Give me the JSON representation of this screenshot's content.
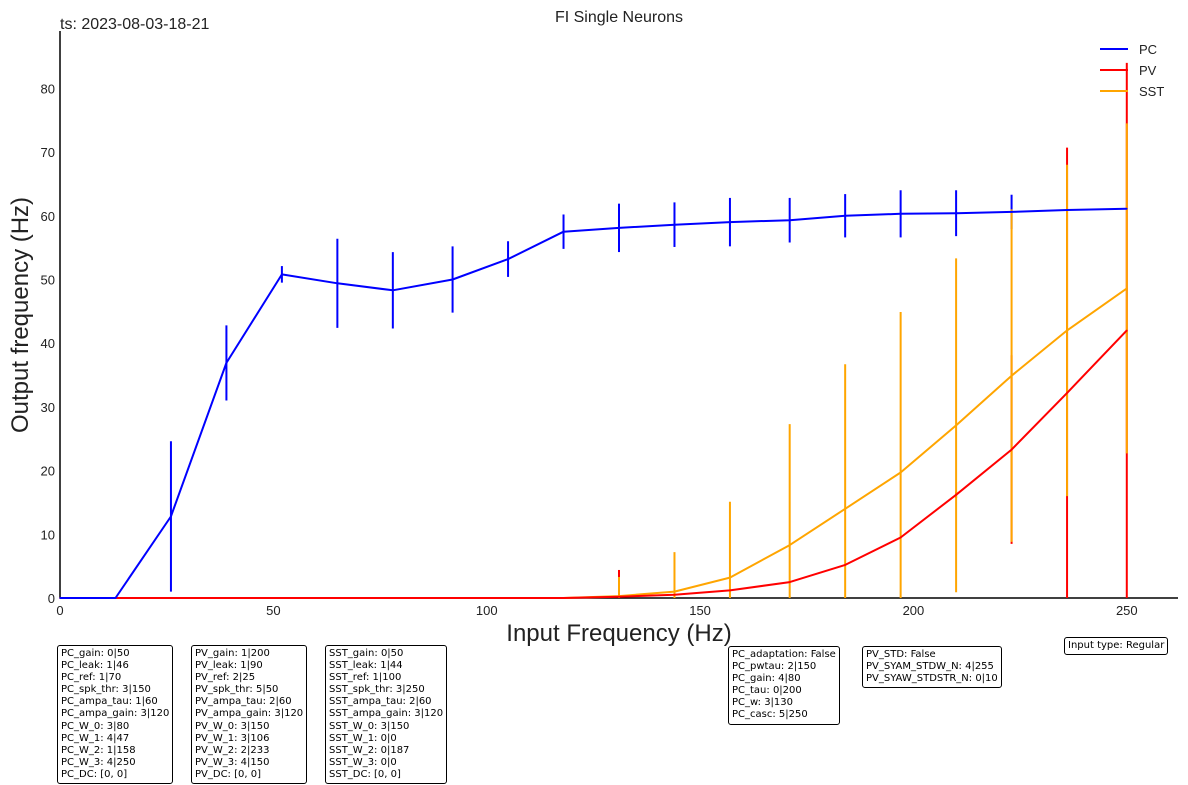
{
  "chart_data": {
    "type": "line",
    "title": "FI Single Neurons",
    "timestamp": "ts: 2023-08-03-18-21",
    "xlabel": "Input Frequency (Hz)",
    "ylabel": "Output frequency (Hz)",
    "xlim": [
      0,
      262
    ],
    "ylim": [
      0,
      89
    ],
    "xticks": [
      0,
      50,
      100,
      150,
      200,
      250
    ],
    "yticks": [
      0,
      10,
      20,
      30,
      40,
      50,
      60,
      70,
      80
    ],
    "legend_position": "top-right",
    "x": [
      0,
      13,
      26,
      39,
      52,
      65,
      78,
      92,
      105,
      118,
      131,
      144,
      157,
      171,
      184,
      197,
      210,
      223,
      236,
      250
    ],
    "series": [
      {
        "name": "PC",
        "color": "#0000ff",
        "values": [
          0,
          0,
          12.8,
          36.9,
          50.8,
          49.4,
          48.3,
          50.0,
          53.2,
          57.5,
          58.1,
          58.6,
          59.0,
          59.3,
          60.0,
          60.3,
          60.4,
          60.6,
          60.9,
          61.1
        ],
        "errors": [
          0,
          0,
          11.8,
          5.9,
          1.3,
          7.0,
          6.0,
          5.2,
          2.8,
          2.7,
          3.8,
          3.5,
          3.8,
          3.5,
          3.4,
          3.7,
          3.6,
          2.7,
          0,
          0
        ]
      },
      {
        "name": "PV",
        "color": "#ff0000",
        "values": [
          0,
          0,
          0,
          0,
          0,
          0,
          0,
          0,
          0,
          0,
          0.2,
          0.5,
          1.2,
          2.5,
          5.2,
          9.5,
          16.2,
          23.3,
          32.2,
          42.0
        ],
        "errors": [
          0,
          0,
          0,
          0,
          0,
          0,
          0,
          0,
          0,
          0,
          4.2,
          0,
          0,
          0,
          0,
          0,
          0.5,
          14.8,
          38.5,
          42.0
        ]
      },
      {
        "name": "SST",
        "color": "#ffa500",
        "values": [
          0,
          0,
          0,
          0,
          0,
          0,
          0,
          0,
          0,
          0,
          0.3,
          1.0,
          3.2,
          8.3,
          14.0,
          19.7,
          27.1,
          34.9,
          42.0,
          48.6
        ],
        "errors": [
          0,
          0,
          0,
          0,
          0,
          0,
          0,
          0,
          0,
          0,
          3.0,
          6.2,
          11.9,
          19.0,
          22.7,
          25.2,
          26.2,
          26.1,
          26.0,
          25.9
        ]
      }
    ]
  },
  "param_boxes": [
    {
      "lines": [
        "PC_gain: 0|50",
        "PC_leak: 1|46",
        "PC_ref: 1|70",
        "PC_spk_thr: 3|150",
        "PC_ampa_tau: 1|60",
        "PC_ampa_gain: 3|120",
        "PC_W_0: 3|80",
        "PC_W_1: 4|47",
        "PC_W_2: 1|158",
        "PC_W_3: 4|250",
        "PC_DC: [0, 0]"
      ]
    },
    {
      "lines": [
        "PV_gain: 1|200",
        "PV_leak: 1|90",
        "PV_ref: 2|25",
        "PV_spk_thr: 5|50",
        "PV_ampa_tau: 2|60",
        "PV_ampa_gain: 3|120",
        "PV_W_0: 3|150",
        "PV_W_1: 3|106",
        "PV_W_2: 2|233",
        "PV_W_3: 4|150",
        "PV_DC: [0, 0]"
      ]
    },
    {
      "lines": [
        "SST_gain: 0|50",
        "SST_leak: 1|44",
        "SST_ref: 1|100",
        "SST_spk_thr: 3|250",
        "SST_ampa_tau: 2|60",
        "SST_ampa_gain: 3|120",
        "SST_W_0: 3|150",
        "SST_W_1: 0|0",
        "SST_W_2: 0|187",
        "SST_W_3: 0|0",
        "SST_DC: [0, 0]"
      ]
    },
    {
      "lines": [
        "PC_adaptation: False",
        "PC_pwtau: 2|150",
        "PC_gain: 4|80",
        "PC_tau: 0|200",
        "PC_w: 3|130",
        "PC_casc: 5|250"
      ]
    },
    {
      "lines": [
        "PV_STD: False",
        "PV_SYAM_STDW_N: 4|255",
        "PV_SYAW_STDSTR_N: 0|10"
      ]
    },
    {
      "lines": [
        "Input type: Regular"
      ]
    }
  ]
}
